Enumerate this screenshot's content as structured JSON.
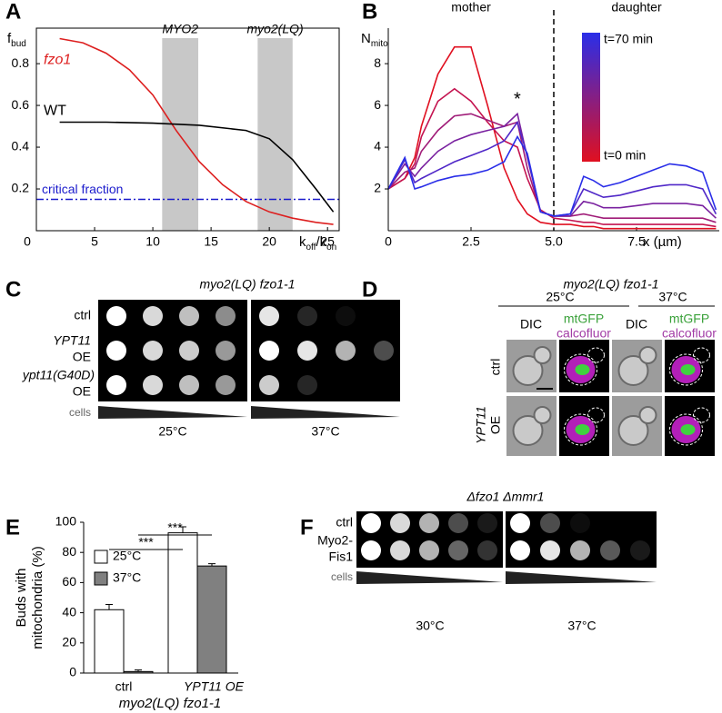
{
  "panel_labels": [
    "A",
    "B",
    "C",
    "D",
    "E",
    "F"
  ],
  "chart_data": [
    {
      "type": "line",
      "ylabel": [
        {
          "text": "f"
        },
        {
          "text": "bud",
          "sub": true
        }
      ],
      "xlabel": [
        {
          "text": "k"
        },
        {
          "text": "off",
          "sub": true
        },
        {
          "text": "/k"
        },
        {
          "text": "on",
          "sub": true
        }
      ],
      "xlim": [
        0,
        26
      ],
      "ylim": [
        0,
        0.97
      ],
      "xticks": [
        0,
        5,
        10,
        15,
        20,
        25
      ],
      "yticks": [
        0.2,
        0.4,
        0.6,
        0.8
      ],
      "series": [
        {
          "name": "fzo1",
          "color": "#dd1f1f",
          "x": [
            2,
            4,
            6,
            8,
            10,
            12,
            14,
            16,
            18,
            20,
            22,
            24,
            25.5
          ],
          "values": [
            0.92,
            0.9,
            0.85,
            0.77,
            0.65,
            0.48,
            0.33,
            0.22,
            0.14,
            0.09,
            0.06,
            0.04,
            0.03
          ]
        },
        {
          "name": "WT",
          "color": "#000000",
          "x": [
            2,
            6,
            10,
            14,
            18,
            20,
            22,
            24,
            25.5
          ],
          "values": [
            0.52,
            0.52,
            0.515,
            0.505,
            0.48,
            0.44,
            0.34,
            0.2,
            0.09
          ]
        }
      ],
      "hlines": [
        {
          "value": 0.15,
          "label": "critical fraction",
          "color": "#1a1acc"
        }
      ],
      "bands": [
        {
          "range": [
            10.8,
            13.9
          ],
          "label": "MYO2"
        },
        {
          "range": [
            19,
            22
          ],
          "label": "myo2(LQ)"
        }
      ]
    },
    {
      "type": "line",
      "ylabel": [
        {
          "text": "N"
        },
        {
          "text": "mito",
          "sub": true
        }
      ],
      "xlabel": [
        {
          "text": "x (µm)"
        }
      ],
      "xlim": [
        0,
        10
      ],
      "ylim": [
        0,
        9.7
      ],
      "xticks": [
        0,
        2.5,
        {
          "value": 5,
          "label": "5.0"
        },
        7.5
      ],
      "yticks": [
        2,
        4,
        6,
        8
      ],
      "x": [
        0,
        0.5,
        0.8,
        1,
        1.5,
        2,
        2.5,
        3,
        3.5,
        3.9,
        4.2,
        4.6,
        5,
        5.5,
        5.9,
        6.2,
        6.5,
        7,
        7.5,
        8,
        8.5,
        9,
        9.5,
        9.9
      ],
      "series": [
        {
          "color": "#e01020",
          "values": [
            2,
            2.5,
            3.5,
            5,
            7.5,
            8.8,
            8.8,
            6,
            3,
            1.5,
            0.8,
            0.4,
            0.3,
            0.3,
            0.2,
            0.2,
            0.1,
            0.1,
            0.1,
            0.1,
            0.1,
            0.1,
            0.1,
            0.1
          ]
        },
        {
          "color": "#c41450",
          "values": [
            2,
            2.5,
            3.2,
            4.5,
            6.2,
            6.8,
            6.2,
            5.2,
            4.3,
            4.0,
            2.5,
            1.0,
            0.6,
            0.5,
            0.4,
            0.4,
            0.3,
            0.3,
            0.3,
            0.3,
            0.3,
            0.3,
            0.3,
            0.2
          ]
        },
        {
          "color": "#a01c78",
          "values": [
            2,
            2.8,
            3,
            3.8,
            4.8,
            5.5,
            5.6,
            5.3,
            5.0,
            5.2,
            3,
            0.9,
            0.7,
            0.7,
            0.8,
            0.7,
            0.6,
            0.6,
            0.6,
            0.6,
            0.6,
            0.6,
            0.6,
            0.4
          ]
        },
        {
          "color": "#7a22a0",
          "values": [
            2,
            3.2,
            2.6,
            3,
            3.8,
            4.3,
            4.6,
            4.8,
            5.0,
            5.6,
            3.5,
            0.9,
            0.7,
            0.7,
            1.4,
            1.3,
            1.1,
            1.1,
            1.2,
            1.3,
            1.3,
            1.3,
            1.2,
            0.6
          ]
        },
        {
          "color": "#5028c8",
          "values": [
            2,
            3.4,
            2.3,
            2.5,
            2.9,
            3.3,
            3.6,
            3.9,
            4.3,
            5.2,
            3.6,
            0.9,
            0.7,
            0.8,
            2.0,
            1.8,
            1.6,
            1.7,
            1.9,
            2.1,
            2.2,
            2.2,
            2.0,
            0.8
          ]
        },
        {
          "color": "#2a2ee8",
          "values": [
            2,
            3.5,
            2.0,
            2.1,
            2.4,
            2.6,
            2.7,
            2.9,
            3.3,
            4.5,
            3.7,
            0.9,
            0.7,
            0.8,
            2.6,
            2.4,
            2.1,
            2.3,
            2.6,
            2.9,
            3.2,
            3.1,
            2.8,
            1.0
          ]
        }
      ],
      "vlines": [
        {
          "value": 5
        }
      ],
      "region_labels": [
        "mother",
        "daughter"
      ],
      "annotation": "*",
      "colorbar": {
        "top_label": "t=70 min",
        "bottom_label": "t=0 min"
      }
    },
    {
      "type": "bar",
      "ylabel": [
        "Buds with",
        "mitochondria (%)"
      ],
      "categories": [
        "ctrl",
        "YPT11 OE"
      ],
      "category_note": "myo2(LQ) fzo1-1",
      "ylim": [
        0,
        100
      ],
      "yticks": [
        0,
        20,
        40,
        60,
        80,
        100
      ],
      "series": [
        {
          "name": "25°C",
          "color": "#ffffff",
          "values": [
            42,
            93
          ],
          "errors": [
            3.5,
            4
          ]
        },
        {
          "name": "37°C",
          "color": "#808080",
          "values": [
            1,
            71
          ],
          "errors": [
            1,
            1.5
          ]
        }
      ],
      "legend": "upper left",
      "significance": [
        "***",
        "***"
      ]
    }
  ],
  "panel_c": {
    "title": "myo2(LQ) fzo1-1",
    "rows": [
      [
        "ctrl"
      ],
      [
        "YPT11",
        "OE"
      ],
      [
        "ypt11(G40D)",
        "OE"
      ]
    ],
    "cells_label": "cells",
    "temperatures": [
      "25°C",
      "37°C"
    ]
  },
  "panel_d": {
    "title": "myo2(LQ) fzo1-1",
    "temperatures": [
      "25°C",
      "37°C"
    ],
    "dic": "DIC",
    "fluor": [
      "mtGFP",
      "calcofluor"
    ],
    "rows": [
      [
        "ctrl"
      ],
      [
        "YPT11",
        "OE"
      ]
    ]
  },
  "panel_f": {
    "title": "Δfzo1 Δmmr1",
    "rows": [
      [
        "ctrl"
      ],
      [
        "Myo2-",
        "Fis1"
      ]
    ],
    "cells_label": "cells",
    "temperatures": [
      "30°C",
      "37°C"
    ]
  }
}
